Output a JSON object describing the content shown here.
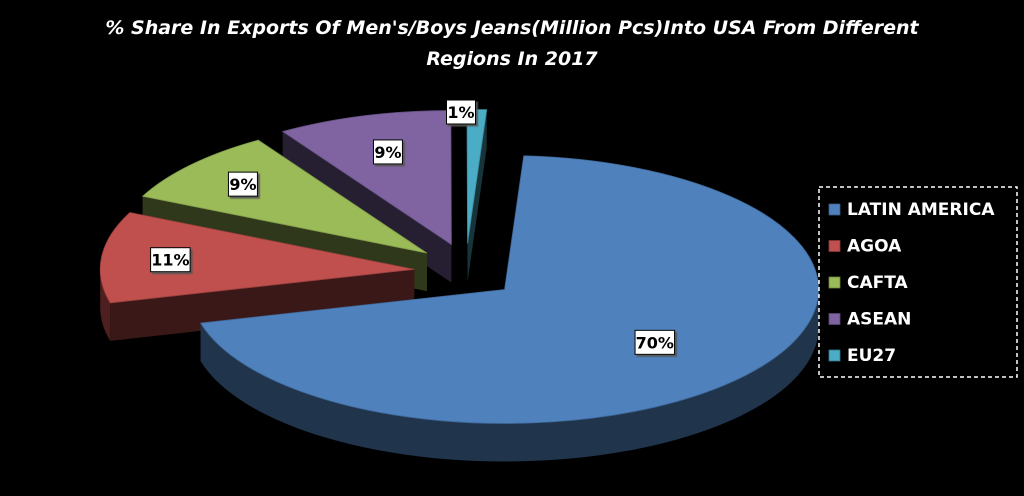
{
  "chart_data": {
    "type": "pie",
    "title": "% Share In Exports Of Men's/Boys Jeans(Million Pcs)Into USA From Different Regions In 2017",
    "title_lines": [
      "% Share In Exports Of Men's/Boys Jeans(Million Pcs)Into USA From Different",
      "Regions In 2017"
    ],
    "categories": [
      "LATIN AMERICA",
      "AGOA",
      "CAFTA",
      "ASEAN",
      "EU27"
    ],
    "values": [
      70,
      11,
      9,
      9,
      1
    ],
    "data_labels": [
      "70%",
      "11%",
      "9%",
      "9%",
      "1%"
    ],
    "colors": [
      "#4f81bd",
      "#c0504d",
      "#9bbb59",
      "#8064a2",
      "#4bacc6"
    ],
    "legend": {
      "position": "right",
      "entries": [
        "LATIN AMERICA",
        "AGOA",
        "CAFTA",
        "ASEAN",
        "EU27"
      ]
    },
    "exploded": true,
    "style": "3d",
    "background": "#000000"
  }
}
